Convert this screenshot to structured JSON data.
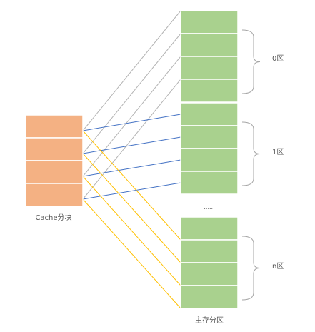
{
  "cache": {
    "label": "Cache分块",
    "block_count": 4,
    "fill": "#f4b183"
  },
  "main_memory": {
    "label": "主存分区",
    "fill": "#a9d18e",
    "ellipsis": "......",
    "zones": [
      {
        "label": "0区",
        "block_count": 4
      },
      {
        "label": "1区",
        "block_count": 4
      },
      {
        "label": "n区",
        "block_count": 4
      }
    ]
  },
  "mapping_colors": {
    "to_zone_0": "#b3b3b3",
    "to_zone_1": "#4472c4",
    "to_zone_n": "#ffc000"
  },
  "brace_color": "#a6a6a6"
}
